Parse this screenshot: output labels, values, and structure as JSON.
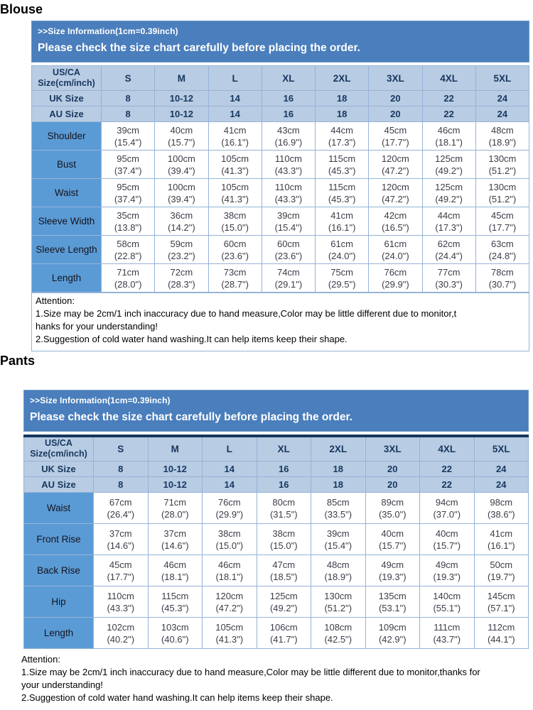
{
  "page": {
    "blouse_heading": "Blouse",
    "pants_heading": "Pants"
  },
  "blouse": {
    "banner": {
      "line1": ">>Size Information(1cm=0.39inch)",
      "line2": "Please check the size chart carefully before placing the order."
    },
    "table": {
      "corner_line1": "US/CA",
      "corner_line2": "Size(cm/inch)",
      "sizes": [
        "S",
        "M",
        "L",
        "XL",
        "2XL",
        "3XL",
        "4XL",
        "5XL"
      ],
      "uk_row": {
        "label": "UK Size",
        "values": [
          "8",
          "10-12",
          "14",
          "16",
          "18",
          "20",
          "22",
          "24"
        ]
      },
      "au_row": {
        "label": "AU Size",
        "values": [
          "8",
          "10-12",
          "14",
          "16",
          "18",
          "20",
          "22",
          "24"
        ]
      },
      "rows": [
        {
          "label": "Shoulder",
          "cm": [
            "39cm",
            "40cm",
            "41cm",
            "43cm",
            "44cm",
            "45cm",
            "46cm",
            "48cm"
          ],
          "inch": [
            "(15.4\")",
            "(15.7\")",
            "(16.1\")",
            "(16.9\")",
            "(17.3\")",
            "(17.7\")",
            "(18.1\")",
            "(18.9\")"
          ]
        },
        {
          "label": "Bust",
          "cm": [
            "95cm",
            "100cm",
            "105cm",
            "110cm",
            "115cm",
            "120cm",
            "125cm",
            "130cm"
          ],
          "inch": [
            "(37.4\")",
            "(39.4\")",
            "(41.3\")",
            "(43.3\")",
            "(45.3\")",
            "(47.2\")",
            "(49.2\")",
            "(51.2\")"
          ]
        },
        {
          "label": "Waist",
          "cm": [
            "95cm",
            "100cm",
            "105cm",
            "110cm",
            "115cm",
            "120cm",
            "125cm",
            "130cm"
          ],
          "inch": [
            "(37.4\")",
            "(39.4\")",
            "(41.3\")",
            "(43.3\")",
            "(45.3\")",
            "(47.2\")",
            "(49.2\")",
            "(51.2\")"
          ]
        },
        {
          "label": "Sleeve Width",
          "cm": [
            "35cm",
            "36cm",
            "38cm",
            "39cm",
            "41cm",
            "42cm",
            "44cm",
            "45cm"
          ],
          "inch": [
            "(13.8\")",
            "(14.2\")",
            "(15.0\")",
            "(15.4\")",
            "(16.1\")",
            "(16.5\")",
            "(17.3\")",
            "(17.7\")"
          ]
        },
        {
          "label": "Sleeve Length",
          "cm": [
            "58cm",
            "59cm",
            "60cm",
            "60cm",
            "61cm",
            "61cm",
            "62cm",
            "63cm"
          ],
          "inch": [
            "(22.8\")",
            "(23.2\")",
            "(23.6\")",
            "(23.6\")",
            "(24.0\")",
            "(24.0\")",
            "(24.4\")",
            "(24.8\")"
          ]
        },
        {
          "label": "Length",
          "cm": [
            "71cm",
            "72cm",
            "73cm",
            "74cm",
            "75cm",
            "76cm",
            "77cm",
            "78cm"
          ],
          "inch": [
            "(28.0\")",
            "(28.3\")",
            "(28.7\")",
            "(29.1\")",
            "(29.5\")",
            "(29.9\")",
            "(30.3\")",
            "(30.7\")"
          ]
        }
      ]
    },
    "attention_lines": [
      "Attention:",
      "1.Size may be 2cm/1 inch inaccuracy due to hand measure,Color may be little different due to monitor,t",
      "hanks for your understanding!",
      "2.Suggestion of cold water hand washing.It can help items keep their shape."
    ]
  },
  "pants": {
    "banner": {
      "line1": ">>Size Information(1cm=0.39inch)",
      "line2": "Please check the size chart carefully before placing the order."
    },
    "table": {
      "corner_line1": "US/CA",
      "corner_line2": "Size(cm/inch)",
      "sizes": [
        "S",
        "M",
        "L",
        "XL",
        "2XL",
        "3XL",
        "4XL",
        "5XL"
      ],
      "uk_row": {
        "label": "UK Size",
        "values": [
          "8",
          "10-12",
          "14",
          "16",
          "18",
          "20",
          "22",
          "24"
        ]
      },
      "au_row": {
        "label": "AU Size",
        "values": [
          "8",
          "10-12",
          "14",
          "16",
          "18",
          "20",
          "22",
          "24"
        ]
      },
      "rows": [
        {
          "label": "Waist",
          "cm": [
            "67cm",
            "71cm",
            "76cm",
            "80cm",
            "85cm",
            "89cm",
            "94cm",
            "98cm"
          ],
          "inch": [
            "(26.4\")",
            "(28.0\")",
            "(29.9\")",
            "(31.5\")",
            "(33.5\")",
            "(35.0\")",
            "(37.0\")",
            "(38.6\")"
          ]
        },
        {
          "label": "Front Rise",
          "cm": [
            "37cm",
            "37cm",
            "38cm",
            "38cm",
            "39cm",
            "40cm",
            "40cm",
            "41cm"
          ],
          "inch": [
            "(14.6\")",
            "(14.6\")",
            "(15.0\")",
            "(15.0\")",
            "(15.4\")",
            "(15.7\")",
            "(15.7\")",
            "(16.1\")"
          ]
        },
        {
          "label": "Back Rise",
          "cm": [
            "45cm",
            "46cm",
            "46cm",
            "47cm",
            "48cm",
            "49cm",
            "49cm",
            "50cm"
          ],
          "inch": [
            "(17.7\")",
            "(18.1\")",
            "(18.1\")",
            "(18.5\")",
            "(18.9\")",
            "(19.3\")",
            "(19.3\")",
            "(19.7\")"
          ]
        },
        {
          "label": "Hip",
          "cm": [
            "110cm",
            "115cm",
            "120cm",
            "125cm",
            "130cm",
            "135cm",
            "140cm",
            "145cm"
          ],
          "inch": [
            "(43.3\")",
            "(45.3\")",
            "(47.2\")",
            "(49.2\")",
            "(51.2\")",
            "(53.1\")",
            "(55.1\")",
            "(57.1\")"
          ]
        },
        {
          "label": "Length",
          "cm": [
            "102cm",
            "103cm",
            "105cm",
            "106cm",
            "108cm",
            "109cm",
            "111cm",
            "112cm"
          ],
          "inch": [
            "(40.2\")",
            "(40.6\")",
            "(41.3\")",
            "(41.7\")",
            "(42.5\")",
            "(42.9\")",
            "(43.7\")",
            "(44.1\")"
          ]
        }
      ]
    },
    "attention_lines": [
      "Attention:",
      "1.Size may be 2cm/1 inch inaccuracy due to hand measure,Color may be little different due to monitor,thanks for",
      "your understanding!",
      "2.Suggestion of cold water hand washing.It can help items keep their shape."
    ]
  },
  "colors": {
    "banner_blue": "#4a7ebc",
    "header_row_blue": "#b8cce4",
    "label_column_blue": "#5b9bd5",
    "border_blue": "#95b3d7",
    "dark_navy": "#17375e"
  }
}
